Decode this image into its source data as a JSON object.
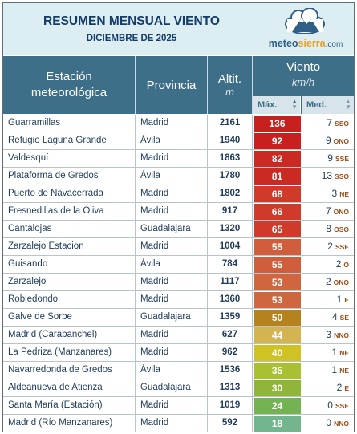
{
  "header": {
    "title": "RESUMEN MENSUAL VIENTO",
    "subtitle": "DICIEMBRE DE 2025",
    "logo": {
      "part1": "meteo",
      "part2": "sierra",
      "part3": ".com"
    }
  },
  "columns": {
    "station_line1": "Estación",
    "station_line2": "meteorológica",
    "province": "Provincia",
    "altitude": "Altit.",
    "altitude_unit": "m",
    "wind": "Viento",
    "wind_unit": "km/h",
    "max": "Máx.",
    "med": "Med."
  },
  "rows": [
    {
      "station": "Guarramillas",
      "province": "Madrid",
      "alt": "2161",
      "max": "136",
      "max_color": "#c8201f",
      "med": "7",
      "dir": "SSO"
    },
    {
      "station": "Refugio Laguna Grande",
      "province": "Ávila",
      "alt": "1940",
      "max": "92",
      "max_color": "#c8201f",
      "med": "9",
      "dir": "ONO"
    },
    {
      "station": "Valdesquí",
      "province": "Madrid",
      "alt": "1863",
      "max": "82",
      "max_color": "#cb2a22",
      "med": "9",
      "dir": "SSE"
    },
    {
      "station": "Plataforma de Gredos",
      "province": "Ávila",
      "alt": "1780",
      "max": "81",
      "max_color": "#cb2a22",
      "med": "13",
      "dir": "SSO"
    },
    {
      "station": "Puerto de Navacerrada",
      "province": "Madrid",
      "alt": "1802",
      "max": "68",
      "max_color": "#d03a2a",
      "med": "3",
      "dir": "NE"
    },
    {
      "station": "Fresnedillas de la Oliva",
      "province": "Madrid",
      "alt": "917",
      "max": "66",
      "max_color": "#d03a2a",
      "med": "7",
      "dir": "ONO"
    },
    {
      "station": "Cantalojas",
      "province": "Guadalajara",
      "alt": "1320",
      "max": "65",
      "max_color": "#d03a2a",
      "med": "8",
      "dir": "OSO"
    },
    {
      "station": "Zarzalejo Estacion",
      "province": "Madrid",
      "alt": "1004",
      "max": "55",
      "max_color": "#d05e3c",
      "med": "2",
      "dir": "SSE"
    },
    {
      "station": "Guisando",
      "province": "Ávila",
      "alt": "784",
      "max": "55",
      "max_color": "#d05e3c",
      "med": "2",
      "dir": "O"
    },
    {
      "station": "Zarzalejo",
      "province": "Madrid",
      "alt": "1117",
      "max": "53",
      "max_color": "#d06640",
      "med": "2",
      "dir": "ONO"
    },
    {
      "station": "Robledondo",
      "province": "Madrid",
      "alt": "1360",
      "max": "53",
      "max_color": "#d06640",
      "med": "1",
      "dir": "E"
    },
    {
      "station": "Galve de Sorbe",
      "province": "Guadalajara",
      "alt": "1359",
      "max": "50",
      "max_color": "#b5821e",
      "med": "4",
      "dir": "SE"
    },
    {
      "station": "Madrid (Carabanchel)",
      "province": "Madrid",
      "alt": "627",
      "max": "44",
      "max_color": "#d4b450",
      "med": "3",
      "dir": "NNO"
    },
    {
      "station": "La Pedriza (Manzanares)",
      "province": "Madrid",
      "alt": "962",
      "max": "40",
      "max_color": "#d0c223",
      "med": "1",
      "dir": "NE"
    },
    {
      "station": "Navarredonda de Gredos",
      "province": "Ávila",
      "alt": "1536",
      "max": "35",
      "max_color": "#a9c032",
      "med": "1",
      "dir": "NE"
    },
    {
      "station": "Aldeanueva de Atienza",
      "province": "Guadalajara",
      "alt": "1313",
      "max": "30",
      "max_color": "#8fb53b",
      "med": "2",
      "dir": "E"
    },
    {
      "station": "Santa María (Estación)",
      "province": "Madrid",
      "alt": "1019",
      "max": "24",
      "max_color": "#74b354",
      "med": "0",
      "dir": "SSE"
    },
    {
      "station": "Madrid (Río Manzanares)",
      "province": "Madrid",
      "alt": "592",
      "max": "18",
      "max_color": "#73b58d",
      "med": "0",
      "dir": "NNO"
    }
  ]
}
